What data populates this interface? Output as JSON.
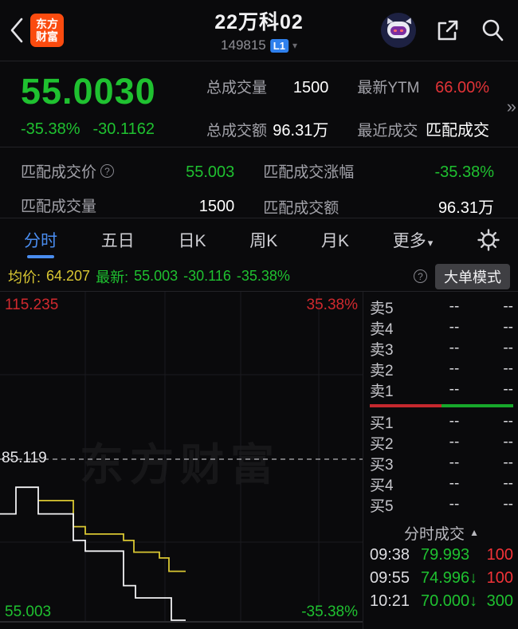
{
  "colors": {
    "green": "#1fc130",
    "red": "#e23337",
    "chart_red": "#d0292e",
    "yellow": "#d9c732",
    "blue": "#4a8df0",
    "badge_blue": "#2f80ed",
    "logo_orange": "#fb4b0f"
  },
  "header": {
    "logo_line1": "东方",
    "logo_line2": "财富",
    "title": "22万科02",
    "code": "149815",
    "level_badge": "L1",
    "caret": "▾"
  },
  "quote": {
    "price": "55.0030",
    "change_pct": "-35.38%",
    "change_amt": "-30.1162",
    "more_icon": "»",
    "stats": [
      {
        "label": "总成交量",
        "value": "1500"
      },
      {
        "label": "最新YTM",
        "value": "66.00%"
      },
      {
        "label": "总成交额",
        "value": "96.31万"
      },
      {
        "label": "最近成交",
        "value": "匹配成交"
      }
    ]
  },
  "match": {
    "rows": [
      {
        "label": "匹配成交价",
        "help": "?",
        "value": "55.003"
      },
      {
        "label": "匹配成交涨幅",
        "value": "-35.38%"
      },
      {
        "label": "匹配成交量",
        "value": "1500"
      },
      {
        "label": "匹配成交额",
        "value": "96.31万"
      }
    ]
  },
  "tabs": {
    "items": [
      "分时",
      "五日",
      "日K",
      "周K",
      "月K",
      "更多"
    ],
    "more_caret": "▾"
  },
  "infobar": {
    "avg_label": "均价:",
    "avg_value": "64.207",
    "latest_label": "最新:",
    "latest_price": "55.003",
    "latest_chg": "-30.116",
    "latest_pct": "-35.38%",
    "help": "?",
    "mode_button": "大单模式"
  },
  "chart": {
    "high_label": "115.235",
    "mid_label": "85.119",
    "low_label": "55.003",
    "pct_high": "35.38%",
    "pct_low": "-35.38%",
    "watermark": "东方财富"
  },
  "chart_data": {
    "type": "line",
    "title": "分时 (intraday)",
    "ylim": [
      55.003,
      115.235
    ],
    "mid_dashed_value": 85.119,
    "series": [
      {
        "name": "价格",
        "color": "#f2f2f4",
        "points": [
          [
            0,
            74.996
          ],
          [
            20,
            74.996
          ],
          [
            20,
            79.993
          ],
          [
            48,
            79.993
          ],
          [
            48,
            74.996
          ],
          [
            92,
            74.996
          ],
          [
            92,
            70.0
          ],
          [
            107,
            70.0
          ],
          [
            107,
            68.0
          ],
          [
            155,
            68.0
          ],
          [
            155,
            61.5
          ],
          [
            170,
            61.5
          ],
          [
            170,
            59.2
          ],
          [
            215,
            59.2
          ],
          [
            215,
            55.003
          ],
          [
            233,
            55.003
          ]
        ]
      },
      {
        "name": "均价",
        "color": "#d9c732",
        "points": [
          [
            48,
            77.5
          ],
          [
            92,
            77.5
          ],
          [
            92,
            72.6
          ],
          [
            107,
            72.6
          ],
          [
            107,
            71.2
          ],
          [
            155,
            71.2
          ],
          [
            155,
            70.0
          ],
          [
            168,
            70.0
          ],
          [
            168,
            67.8
          ],
          [
            200,
            67.8
          ],
          [
            200,
            66.7
          ],
          [
            212,
            66.7
          ],
          [
            212,
            64.207
          ],
          [
            233,
            64.207
          ]
        ]
      }
    ]
  },
  "order_book": {
    "sell": [
      {
        "label": "卖5",
        "price": "--",
        "vol": "--"
      },
      {
        "label": "卖4",
        "price": "--",
        "vol": "--"
      },
      {
        "label": "卖3",
        "price": "--",
        "vol": "--"
      },
      {
        "label": "卖2",
        "price": "--",
        "vol": "--"
      },
      {
        "label": "卖1",
        "price": "--",
        "vol": "--"
      }
    ],
    "buy": [
      {
        "label": "买1",
        "price": "--",
        "vol": "--"
      },
      {
        "label": "买2",
        "price": "--",
        "vol": "--"
      },
      {
        "label": "买3",
        "price": "--",
        "vol": "--"
      },
      {
        "label": "买4",
        "price": "--",
        "vol": "--"
      },
      {
        "label": "买5",
        "price": "--",
        "vol": "--"
      }
    ],
    "bar": {
      "red_pct": 50,
      "green_pct": 50
    }
  },
  "trades": {
    "title": "分时成交",
    "collapse_icon": "▲",
    "rows": [
      {
        "time": "09:38",
        "price": "79.993",
        "arrow": "",
        "vol": "100",
        "vol_color": "red"
      },
      {
        "time": "09:55",
        "price": "74.996",
        "arrow": "↓",
        "vol": "100",
        "vol_color": "red"
      },
      {
        "time": "10:21",
        "price": "70.000",
        "arrow": "↓",
        "vol": "300",
        "vol_color": "green"
      }
    ]
  }
}
